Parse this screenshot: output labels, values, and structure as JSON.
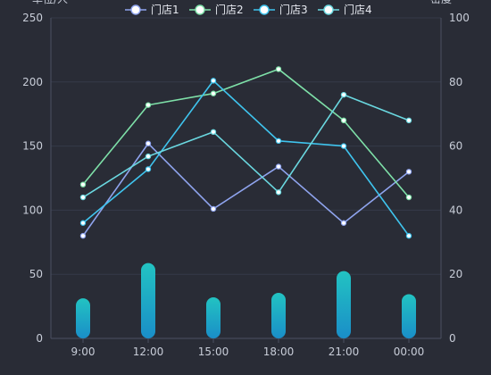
{
  "chart_data": {
    "type": "line",
    "categories": [
      "9:00",
      "12:00",
      "15:00",
      "18:00",
      "21:00",
      "00:00"
    ],
    "y_left": {
      "label": "单位/人",
      "range": [
        0,
        250
      ],
      "ticks": [
        0,
        50,
        100,
        150,
        200,
        250
      ]
    },
    "y_right": {
      "label": "密度",
      "range": [
        0,
        100
      ],
      "ticks": [
        0,
        20,
        40,
        60,
        80,
        100
      ]
    },
    "grid": true,
    "legend_position": "top-center",
    "series": [
      {
        "name": "门店1",
        "values": [
          80,
          152,
          101,
          134,
          90,
          130
        ],
        "color": "#8fa4ee"
      },
      {
        "name": "门店2",
        "values": [
          120,
          182,
          191,
          210,
          170,
          110
        ],
        "color": "#7ee0a8"
      },
      {
        "name": "门店3",
        "values": [
          90,
          132,
          201,
          154,
          150,
          80
        ],
        "color": "#3fc4ee"
      },
      {
        "name": "门店4",
        "values": [
          110,
          142,
          161,
          114,
          190,
          170
        ],
        "color": "#6ad8e0"
      }
    ],
    "bars": {
      "axis": "right",
      "values": [
        12.5,
        23.5,
        12.8,
        14.2,
        21,
        13.8
      ],
      "color_top": "#22c3c2",
      "color_bottom": "#1a8ec8"
    }
  },
  "colors": {
    "background": "#292c36",
    "grid": "#353a48",
    "axis": "#4a5062",
    "text": "#c8cdd8"
  }
}
